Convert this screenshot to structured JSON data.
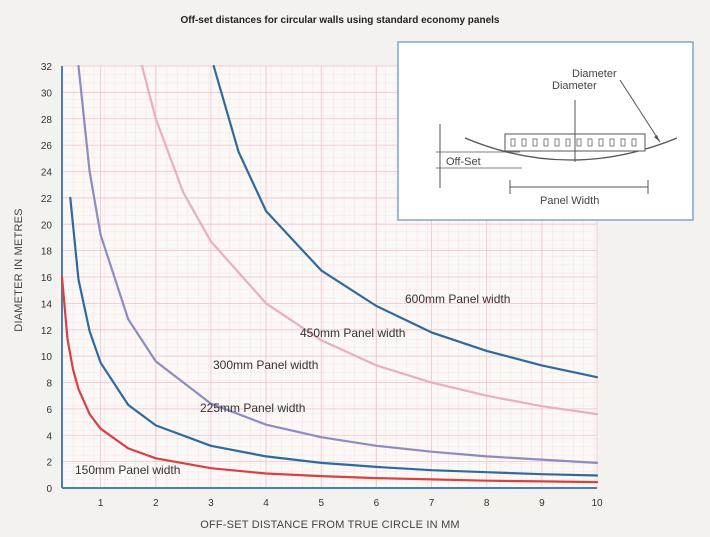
{
  "chart_data": {
    "type": "line",
    "title": "Off-set distances for circular walls using standard economy panels",
    "xlabel": "OFF-SET DISTANCE FROM TRUE CIRCLE IN MM",
    "ylabel": "DIAMETER IN METRES",
    "xlim": [
      0.3,
      10
    ],
    "ylim": [
      0,
      32
    ],
    "x_ticks": [
      "1",
      "2",
      "3",
      "4",
      "5",
      "6",
      "7",
      "8",
      "9",
      "10"
    ],
    "y_ticks": [
      "0",
      "2",
      "4",
      "6",
      "8",
      "10",
      "12",
      "14",
      "16",
      "18",
      "20",
      "22",
      "24",
      "26",
      "28",
      "30",
      "32"
    ],
    "grid": true,
    "series": [
      {
        "name": "150mm Panel width",
        "color": "#d94040",
        "x": [
          0.3,
          0.4,
          0.5,
          0.6,
          0.8,
          1,
          1.5,
          2,
          3,
          4,
          5,
          6,
          7,
          8,
          9,
          10
        ],
        "y": [
          16,
          11.3,
          9,
          7.5,
          5.6,
          4.5,
          3,
          2.25,
          1.5,
          1.1,
          0.9,
          0.75,
          0.65,
          0.55,
          0.5,
          0.45
        ]
      },
      {
        "name": "225mm Panel width",
        "color": "#2e6aa0",
        "x": [
          0.45,
          0.6,
          0.8,
          1,
          1.5,
          2,
          3,
          4,
          5,
          6,
          7,
          8,
          9,
          10
        ],
        "y": [
          22,
          15.8,
          11.9,
          9.5,
          6.3,
          4.75,
          3.2,
          2.4,
          1.9,
          1.6,
          1.35,
          1.2,
          1.05,
          0.95
        ]
      },
      {
        "name": "300mm Panel width",
        "color": "#8a8cc4",
        "x": [
          0.6,
          0.8,
          1,
          1.5,
          2,
          3,
          4,
          5,
          6,
          7,
          8,
          9,
          10
        ],
        "y": [
          32,
          24,
          19.2,
          12.8,
          9.6,
          6.4,
          4.8,
          3.85,
          3.2,
          2.75,
          2.4,
          2.15,
          1.9
        ]
      },
      {
        "name": "450mm Panel width",
        "color": "#e8b0bf",
        "x": [
          1.75,
          2,
          2.5,
          3,
          4,
          5,
          6,
          7,
          8,
          9,
          10
        ],
        "y": [
          32,
          28,
          22.4,
          18.7,
          14,
          11.2,
          9.3,
          8,
          7,
          6.2,
          5.6
        ]
      },
      {
        "name": "600mm Panel width",
        "color": "#2e6aa0",
        "x": [
          3.05,
          3.5,
          4,
          5,
          6,
          7,
          8,
          9,
          10
        ],
        "y": [
          32,
          25.5,
          21,
          16.5,
          13.8,
          11.8,
          10.4,
          9.3,
          8.4
        ]
      }
    ],
    "inset": {
      "diameter_label": "Diameter",
      "offset_label": "Off-Set",
      "panel_width_label": "Panel Width"
    }
  }
}
